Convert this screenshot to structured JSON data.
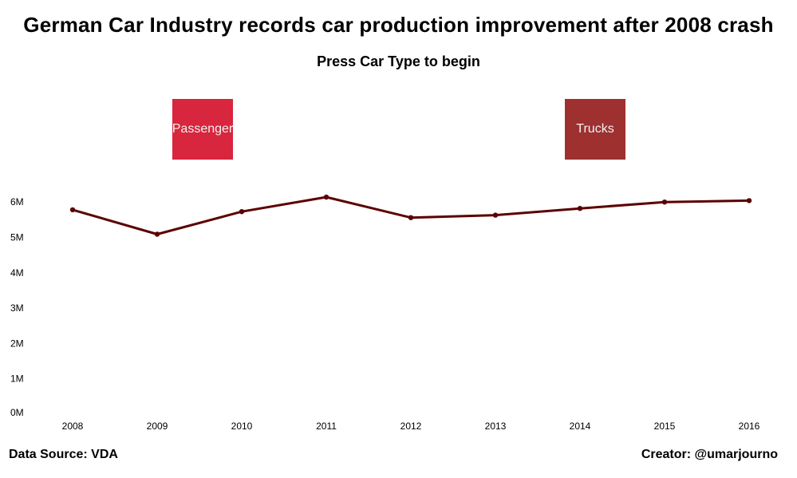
{
  "header": {
    "title": "German Car Industry records car production improvement after 2008 crash",
    "subtitle": "Press Car Type to begin"
  },
  "buttons": [
    {
      "label": "Passenger",
      "color": "#d7263d"
    },
    {
      "label": "Trucks",
      "color": "#9e3030"
    }
  ],
  "footer": {
    "source": "Data Source: VDA",
    "creator": "Creator: @umarjourno"
  },
  "colors": {
    "line": "#5c0000"
  },
  "chart_data": {
    "type": "line",
    "title": "German Car Industry records car production improvement after 2008 crash",
    "xlabel": "",
    "ylabel": "",
    "categories": [
      "2008",
      "2009",
      "2010",
      "2011",
      "2012",
      "2013",
      "2014",
      "2015",
      "2016"
    ],
    "series": [
      {
        "name": "Car production",
        "values": [
          5.78,
          5.09,
          5.73,
          6.14,
          5.56,
          5.63,
          5.82,
          6.0,
          6.04
        ]
      }
    ],
    "ylim": [
      0,
      6.5
    ],
    "yticks": [
      0,
      1,
      2,
      3,
      4,
      5,
      6
    ],
    "ytick_labels": [
      "0M",
      "1M",
      "2M",
      "3M",
      "4M",
      "5M",
      "6M"
    ],
    "grid": false,
    "legend": "none"
  }
}
